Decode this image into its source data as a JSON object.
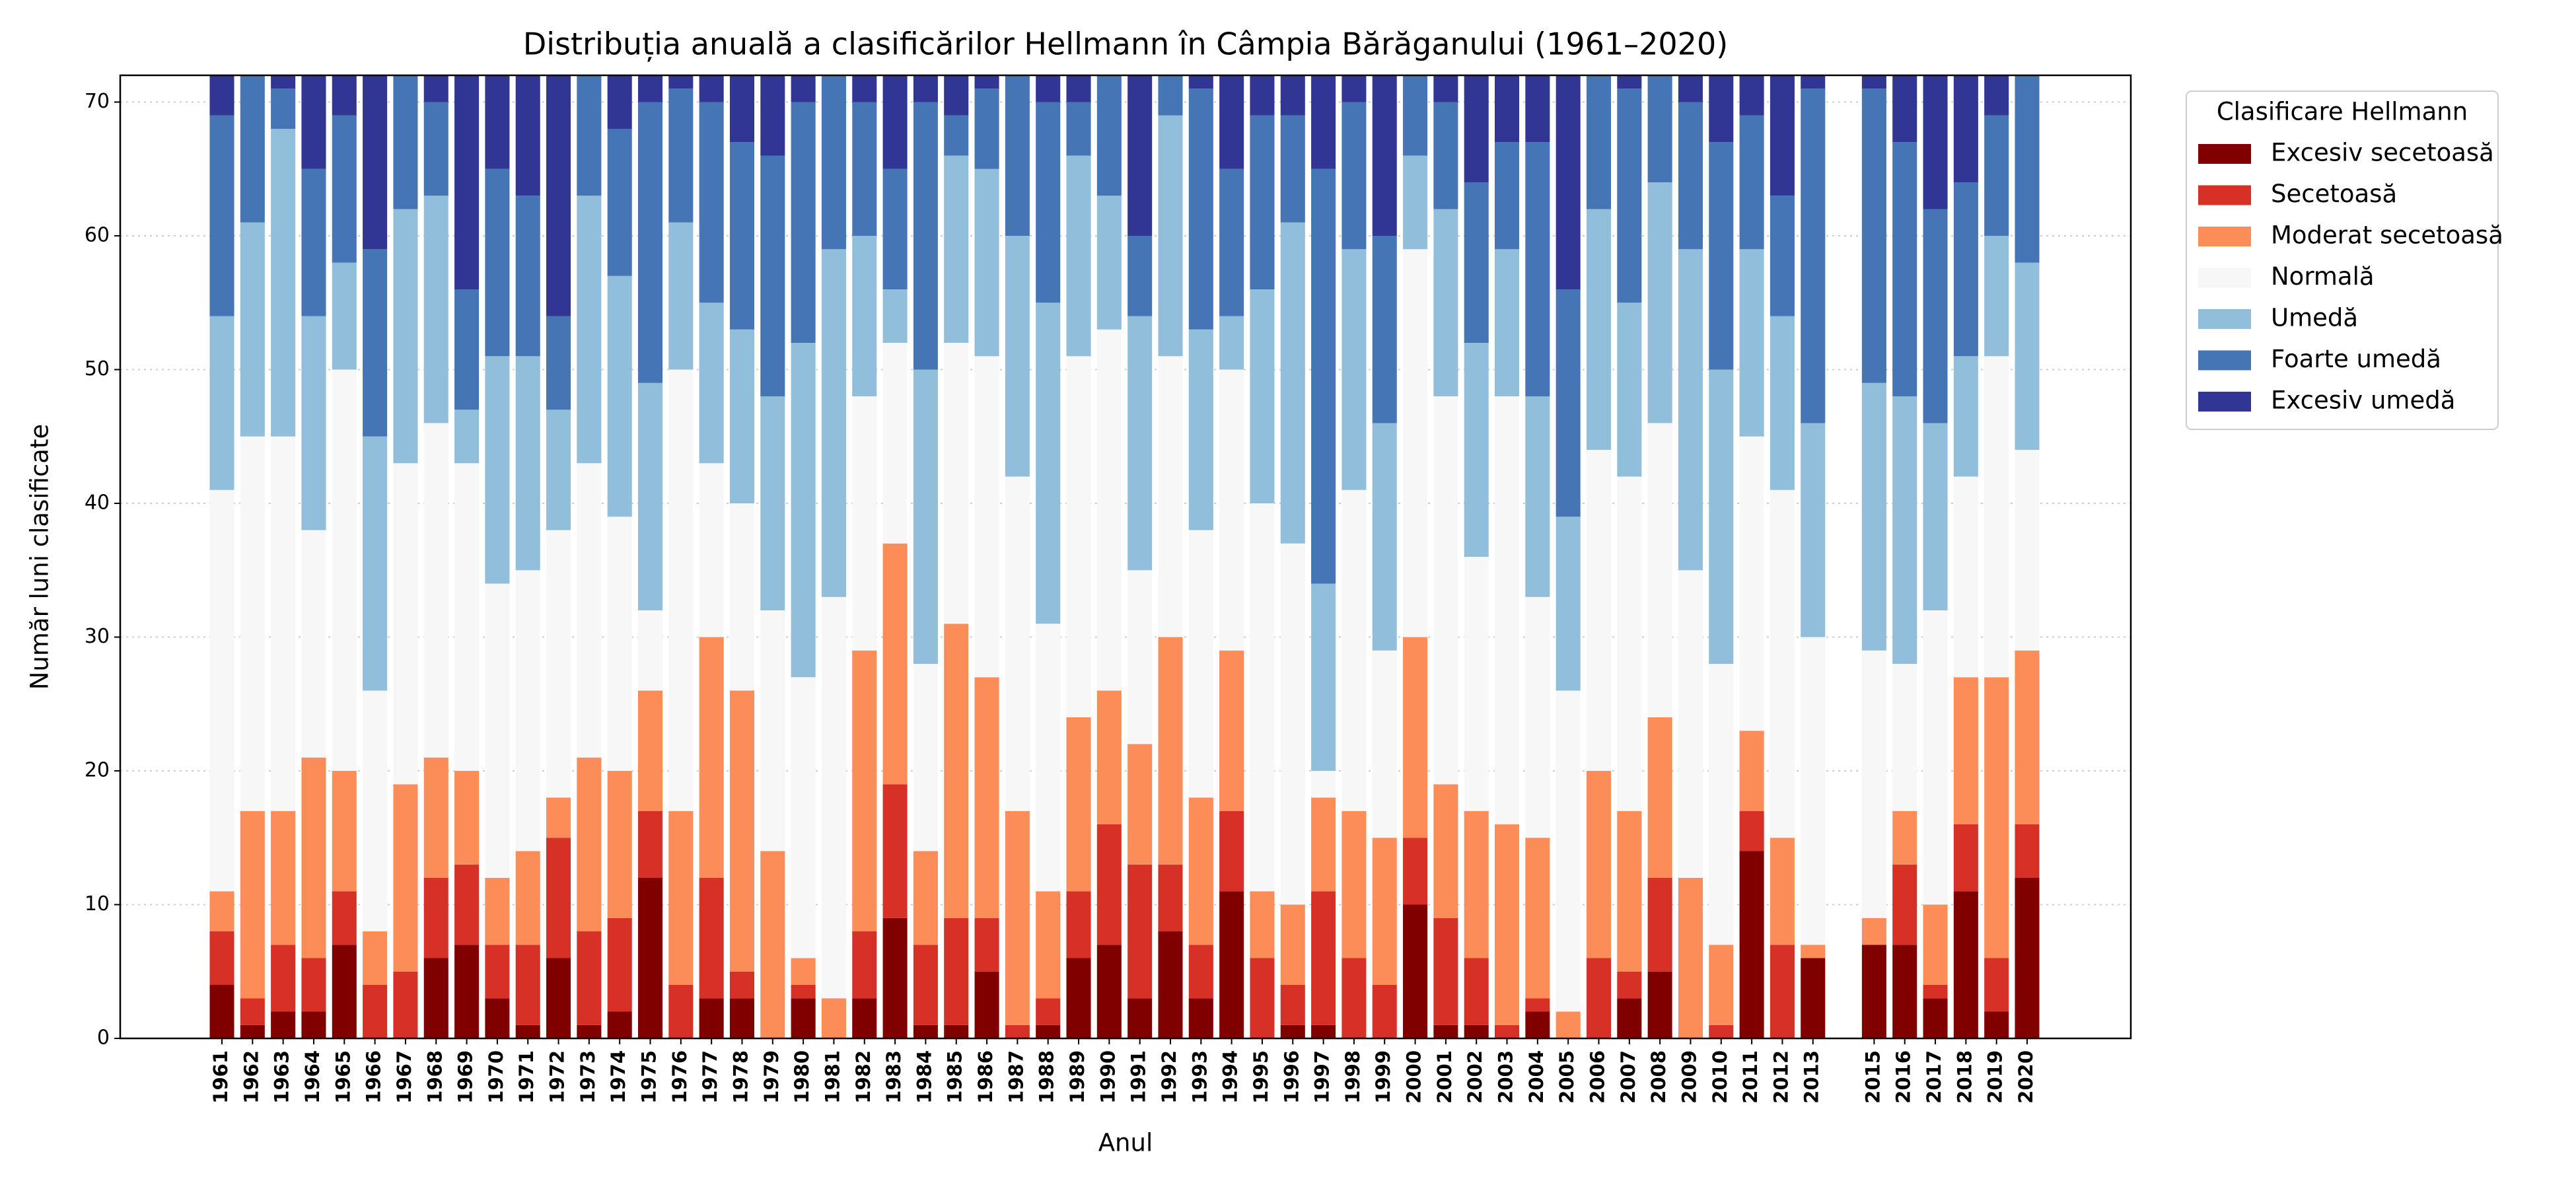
{
  "chart_data": {
    "type": "stacked_bar",
    "title": "Distribuția anuală a clasificărilor Hellmann în Câmpia Bărăganului (1961–2020)",
    "x_label": "Anul",
    "y_label": "Număr luni clasificate",
    "legend_title": "Clasificare Hellmann",
    "legend": "outside upper right",
    "grid": true,
    "categories": [
      "1961",
      "1962",
      "1963",
      "1964",
      "1965",
      "1966",
      "1967",
      "1968",
      "1969",
      "1970",
      "1971",
      "1972",
      "1973",
      "1974",
      "1975",
      "1976",
      "1977",
      "1978",
      "1979",
      "1980",
      "1981",
      "1982",
      "1983",
      "1984",
      "1985",
      "1986",
      "1987",
      "1988",
      "1989",
      "1990",
      "1991",
      "1992",
      "1993",
      "1994",
      "1995",
      "1996",
      "1997",
      "1998",
      "1999",
      "2000",
      "2001",
      "2002",
      "2003",
      "2004",
      "2005",
      "2006",
      "2007",
      "2008",
      "2009",
      "2010",
      "2011",
      "2012",
      "2013",
      null,
      "2015",
      "2016",
      "2017",
      "2018",
      "2019",
      "2020"
    ],
    "ylim": [
      0,
      72
    ],
    "yticks": [
      0,
      10,
      20,
      30,
      40,
      50,
      60,
      70
    ],
    "series": [
      {
        "name": "Excesiv secetoasă",
        "color": "#800000",
        "values": [
          4,
          1,
          2,
          2,
          7,
          0,
          0,
          6,
          7,
          3,
          1,
          6,
          1,
          2,
          12,
          0,
          3,
          3,
          0,
          3,
          0,
          3,
          9,
          1,
          1,
          5,
          0,
          1,
          6,
          7,
          3,
          8,
          3,
          11,
          0,
          1,
          1,
          0,
          0,
          10,
          1,
          1,
          0,
          2,
          0,
          0,
          3,
          5,
          0,
          0,
          14,
          0,
          6,
          null,
          7,
          7,
          3,
          11,
          2,
          12
        ]
      },
      {
        "name": "Secetoasă",
        "color": "#d73027",
        "values": [
          4,
          2,
          5,
          4,
          4,
          4,
          5,
          6,
          6,
          4,
          6,
          9,
          7,
          7,
          5,
          4,
          9,
          2,
          0,
          1,
          0,
          5,
          10,
          6,
          8,
          4,
          1,
          2,
          5,
          9,
          10,
          5,
          4,
          6,
          6,
          3,
          10,
          6,
          4,
          5,
          8,
          5,
          1,
          1,
          0,
          6,
          2,
          7,
          0,
          1,
          3,
          7,
          0,
          null,
          0,
          6,
          1,
          5,
          4,
          4
        ]
      },
      {
        "name": "Moderat secetoasă",
        "color": "#fc8d59",
        "values": [
          3,
          14,
          10,
          15,
          9,
          4,
          14,
          9,
          7,
          5,
          7,
          3,
          13,
          11,
          9,
          13,
          18,
          21,
          14,
          2,
          3,
          21,
          18,
          7,
          22,
          18,
          16,
          8,
          13,
          10,
          9,
          17,
          11,
          12,
          5,
          6,
          7,
          11,
          11,
          15,
          10,
          11,
          15,
          12,
          2,
          14,
          12,
          12,
          12,
          6,
          6,
          8,
          1,
          null,
          2,
          4,
          6,
          11,
          21,
          13
        ]
      },
      {
        "name": "Normală",
        "color": "#f7f7f7",
        "values": [
          30,
          28,
          28,
          17,
          30,
          18,
          24,
          25,
          23,
          22,
          21,
          20,
          22,
          19,
          6,
          33,
          13,
          14,
          18,
          21,
          30,
          19,
          15,
          14,
          21,
          24,
          25,
          20,
          27,
          27,
          13,
          21,
          20,
          21,
          29,
          27,
          2,
          24,
          14,
          29,
          29,
          19,
          32,
          18,
          24,
          24,
          25,
          22,
          23,
          21,
          22,
          26,
          23,
          null,
          20,
          11,
          22,
          15,
          24,
          15
        ]
      },
      {
        "name": "Umedă",
        "color": "#91bfdb",
        "values": [
          13,
          16,
          23,
          16,
          8,
          19,
          19,
          17,
          4,
          17,
          16,
          9,
          20,
          18,
          17,
          11,
          12,
          13,
          16,
          25,
          26,
          12,
          4,
          22,
          14,
          14,
          18,
          24,
          15,
          10,
          19,
          18,
          15,
          4,
          16,
          24,
          14,
          18,
          17,
          7,
          14,
          16,
          11,
          15,
          13,
          18,
          13,
          18,
          24,
          22,
          14,
          13,
          16,
          null,
          20,
          20,
          14,
          9,
          9,
          14
        ]
      },
      {
        "name": "Foarte umedă",
        "color": "#4575b4",
        "values": [
          15,
          11,
          3,
          11,
          11,
          14,
          10,
          7,
          9,
          14,
          12,
          7,
          9,
          11,
          21,
          10,
          15,
          14,
          18,
          18,
          13,
          10,
          9,
          20,
          3,
          6,
          12,
          15,
          4,
          9,
          6,
          3,
          18,
          11,
          13,
          8,
          31,
          11,
          14,
          6,
          8,
          12,
          8,
          19,
          17,
          10,
          16,
          8,
          11,
          17,
          10,
          9,
          25,
          null,
          22,
          19,
          16,
          13,
          9,
          14
        ]
      },
      {
        "name": "Excesiv umedă",
        "color": "#313695",
        "values": [
          3,
          0,
          1,
          7,
          3,
          13,
          0,
          2,
          16,
          7,
          9,
          18,
          0,
          4,
          2,
          1,
          2,
          5,
          6,
          2,
          0,
          2,
          7,
          2,
          3,
          1,
          0,
          2,
          2,
          0,
          12,
          0,
          1,
          7,
          3,
          3,
          7,
          2,
          12,
          0,
          2,
          8,
          5,
          5,
          16,
          0,
          1,
          0,
          2,
          5,
          3,
          9,
          1,
          null,
          1,
          5,
          10,
          8,
          3,
          0
        ]
      }
    ]
  }
}
